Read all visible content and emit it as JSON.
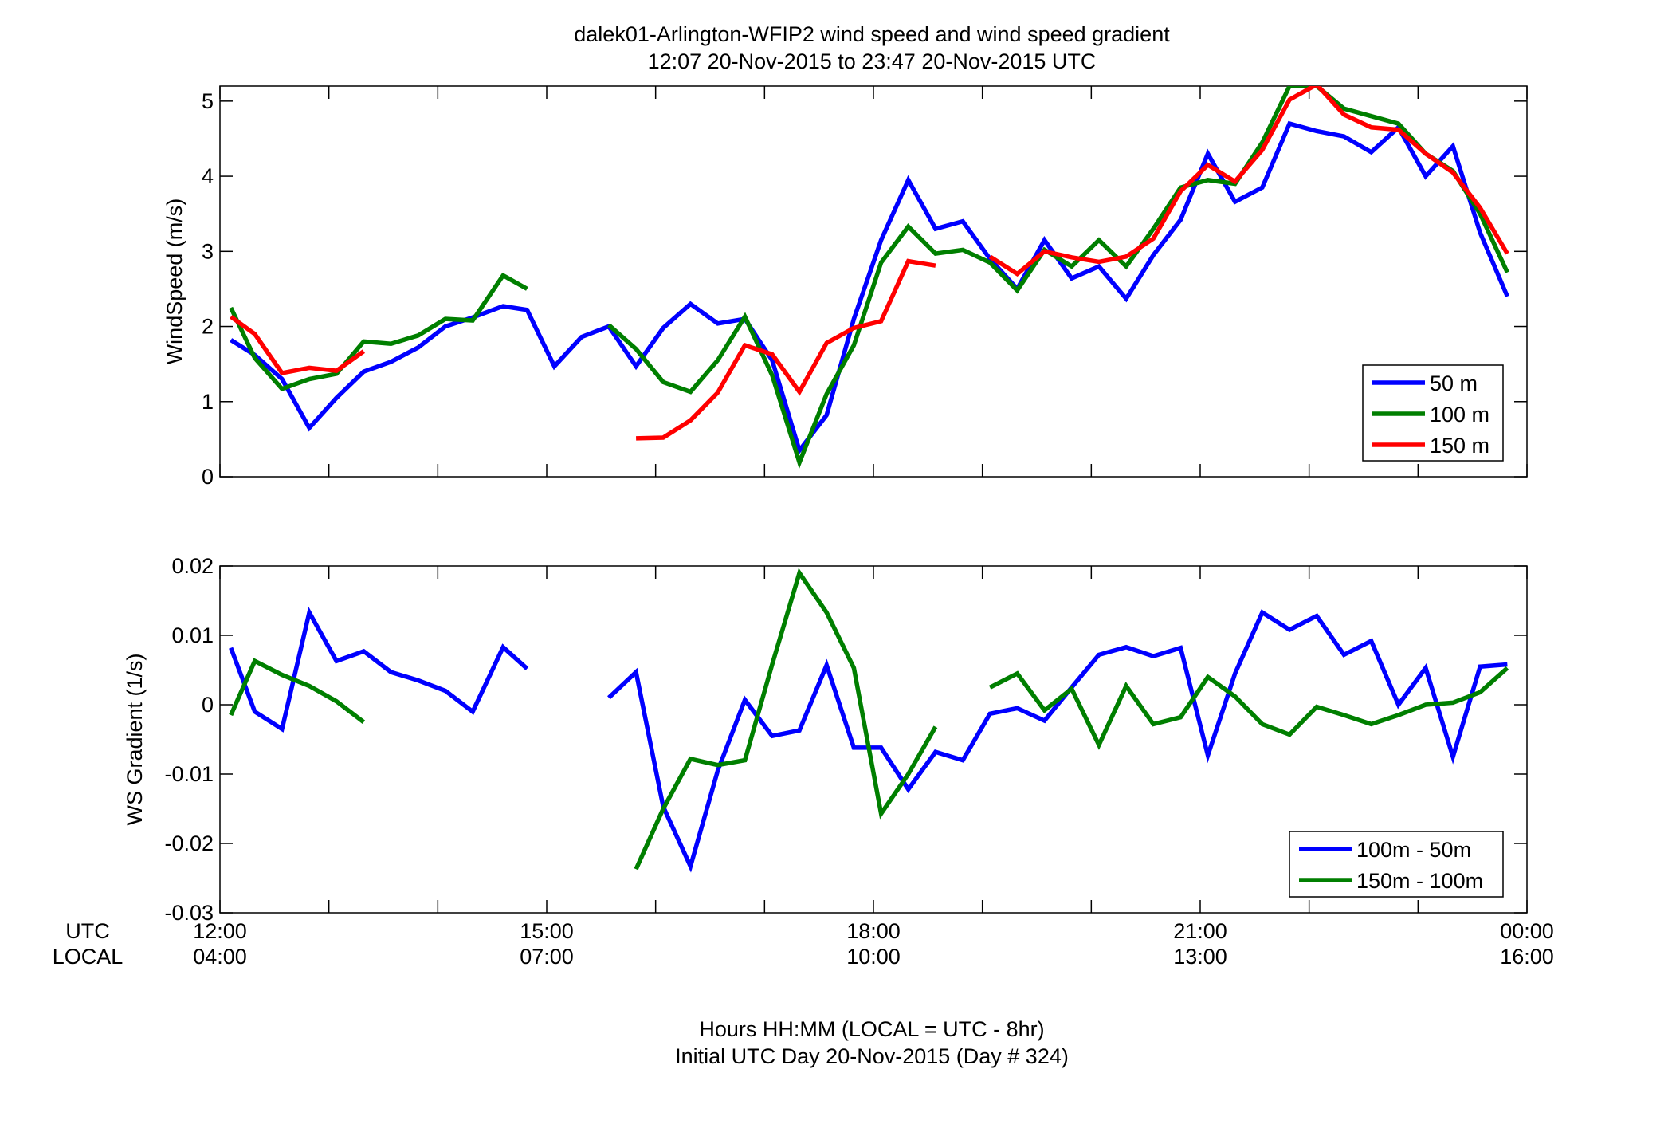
{
  "title": {
    "line1": "dalek01-Arlington-WFIP2  wind speed and wind speed gradient",
    "line2": "12:07 20-Nov-2015 to 23:47 20-Nov-2015  UTC"
  },
  "x_axis": {
    "utc_label": "UTC",
    "local_label": "LOCAL",
    "range_hours": [
      12,
      24
    ],
    "ticks_utc": [
      {
        "hour": 12,
        "label": "12:00"
      },
      {
        "hour": 15,
        "label": "15:00"
      },
      {
        "hour": 18,
        "label": "18:00"
      },
      {
        "hour": 21,
        "label": "21:00"
      },
      {
        "hour": 24,
        "label": "00:00"
      }
    ],
    "ticks_local": [
      {
        "hour": 12,
        "label": "04:00"
      },
      {
        "hour": 15,
        "label": "07:00"
      },
      {
        "hour": 18,
        "label": "10:00"
      },
      {
        "hour": 21,
        "label": "13:00"
      },
      {
        "hour": 24,
        "label": "16:00"
      }
    ],
    "minor_tick_hours": [
      13,
      14,
      16,
      17,
      19,
      20,
      22,
      23
    ],
    "caption_line1": "Hours HH:MM  (LOCAL = UTC - 8hr)",
    "caption_line2": "Initial UTC Day 20-Nov-2015 (Day # 324)"
  },
  "colors": {
    "blue": "#0000ff",
    "green": "#007f00",
    "red": "#ff0000"
  },
  "chart_data": [
    {
      "type": "line",
      "ylabel": "WindSpeed (m/s)",
      "ylim": [
        0,
        5.2
      ],
      "yticks": [
        0,
        1,
        2,
        3,
        4,
        5
      ],
      "ytick_labels": [
        "0",
        "1",
        "2",
        "3",
        "4",
        "5"
      ],
      "legend_position": "bottom-right",
      "series": [
        {
          "name": "50 m",
          "color": "#0000ff",
          "points": [
            [
              12.1,
              1.82
            ],
            [
              12.32,
              1.62
            ],
            [
              12.57,
              1.3
            ],
            [
              12.82,
              0.65
            ],
            [
              13.07,
              1.05
            ],
            [
              13.32,
              1.4
            ],
            [
              13.57,
              1.53
            ],
            [
              13.82,
              1.72
            ],
            [
              14.07,
              2.0
            ],
            [
              14.32,
              2.12
            ],
            [
              14.6,
              2.27
            ],
            [
              14.82,
              2.22
            ],
            [
              15.07,
              1.47
            ],
            [
              15.32,
              1.86
            ],
            [
              15.57,
              2.0
            ],
            [
              15.82,
              1.47
            ],
            [
              16.07,
              1.98
            ],
            [
              16.32,
              2.3
            ],
            [
              16.57,
              2.04
            ],
            [
              16.82,
              2.1
            ],
            [
              17.07,
              1.55
            ],
            [
              17.32,
              0.35
            ],
            [
              17.57,
              0.82
            ],
            [
              17.82,
              2.1
            ],
            [
              18.07,
              3.15
            ],
            [
              18.32,
              3.95
            ],
            [
              18.57,
              3.3
            ],
            [
              18.82,
              3.4
            ],
            [
              19.07,
              2.9
            ],
            [
              19.32,
              2.5
            ],
            [
              19.57,
              3.15
            ],
            [
              19.82,
              2.64
            ],
            [
              20.07,
              2.8
            ],
            [
              20.32,
              2.37
            ],
            [
              20.57,
              2.95
            ],
            [
              20.82,
              3.42
            ],
            [
              21.07,
              4.3
            ],
            [
              21.32,
              3.66
            ],
            [
              21.57,
              3.85
            ],
            [
              21.82,
              4.7
            ],
            [
              22.07,
              4.6
            ],
            [
              22.32,
              4.53
            ],
            [
              22.57,
              4.32
            ],
            [
              22.82,
              4.65
            ],
            [
              23.07,
              4.0
            ],
            [
              23.32,
              4.4
            ],
            [
              23.57,
              3.25
            ],
            [
              23.82,
              2.4
            ]
          ]
        },
        {
          "name": "100 m",
          "color": "#007f00",
          "points": [
            [
              12.1,
              2.25
            ],
            [
              12.32,
              1.58
            ],
            [
              12.57,
              1.17
            ],
            [
              12.82,
              1.3
            ],
            [
              13.07,
              1.37
            ],
            [
              13.32,
              1.8
            ],
            [
              13.57,
              1.77
            ],
            [
              13.82,
              1.88
            ],
            [
              14.07,
              2.1
            ],
            [
              14.32,
              2.08
            ],
            [
              14.6,
              2.68
            ],
            [
              14.82,
              2.5
            ],
            null,
            [
              15.57,
              2.02
            ],
            [
              15.82,
              1.7
            ],
            [
              16.07,
              1.26
            ],
            [
              16.32,
              1.13
            ],
            [
              16.57,
              1.55
            ],
            [
              16.82,
              2.13
            ],
            [
              17.07,
              1.35
            ],
            [
              17.32,
              0.19
            ],
            [
              17.57,
              1.1
            ],
            [
              17.82,
              1.75
            ],
            [
              18.07,
              2.85
            ],
            [
              18.32,
              3.33
            ],
            [
              18.57,
              2.97
            ],
            [
              18.82,
              3.02
            ],
            [
              19.07,
              2.85
            ],
            [
              19.32,
              2.48
            ],
            [
              19.57,
              3.02
            ],
            [
              19.82,
              2.8
            ],
            [
              20.07,
              3.15
            ],
            [
              20.32,
              2.8
            ],
            [
              20.57,
              3.3
            ],
            [
              20.82,
              3.85
            ],
            [
              21.07,
              3.95
            ],
            [
              21.32,
              3.9
            ],
            [
              21.57,
              4.45
            ],
            [
              21.82,
              5.2
            ],
            [
              22.07,
              5.2
            ],
            [
              22.32,
              4.9
            ],
            [
              22.57,
              4.8
            ],
            [
              22.82,
              4.7
            ],
            [
              23.07,
              4.3
            ],
            [
              23.32,
              4.07
            ],
            [
              23.57,
              3.5
            ],
            [
              23.82,
              2.72
            ]
          ]
        },
        {
          "name": "150 m",
          "color": "#ff0000",
          "points": [
            [
              12.1,
              2.13
            ],
            [
              12.32,
              1.9
            ],
            [
              12.57,
              1.38
            ],
            [
              12.82,
              1.45
            ],
            [
              13.07,
              1.41
            ],
            [
              13.32,
              1.67
            ],
            null,
            [
              15.82,
              0.51
            ],
            [
              16.07,
              0.52
            ],
            [
              16.32,
              0.75
            ],
            [
              16.57,
              1.12
            ],
            [
              16.82,
              1.75
            ],
            [
              17.07,
              1.63
            ],
            [
              17.32,
              1.13
            ],
            [
              17.57,
              1.78
            ],
            [
              17.82,
              1.98
            ],
            [
              18.07,
              2.07
            ],
            [
              18.32,
              2.87
            ],
            [
              18.57,
              2.81
            ],
            null,
            [
              19.07,
              2.93
            ],
            [
              19.32,
              2.7
            ],
            [
              19.57,
              3.0
            ],
            [
              19.82,
              2.92
            ],
            [
              20.07,
              2.86
            ],
            [
              20.32,
              2.93
            ],
            [
              20.57,
              3.17
            ],
            [
              20.82,
              3.8
            ],
            [
              21.07,
              4.15
            ],
            [
              21.32,
              3.93
            ],
            [
              21.57,
              4.35
            ],
            [
              21.82,
              5.02
            ],
            [
              22.07,
              5.22
            ],
            [
              22.32,
              4.82
            ],
            [
              22.57,
              4.65
            ],
            [
              22.82,
              4.62
            ],
            [
              23.07,
              4.3
            ],
            [
              23.32,
              4.05
            ],
            [
              23.57,
              3.58
            ],
            [
              23.82,
              2.97
            ]
          ]
        }
      ]
    },
    {
      "type": "line",
      "ylabel": "WS Gradient (1/s)",
      "ylim": [
        -0.03,
        0.02
      ],
      "yticks": [
        -0.03,
        -0.02,
        -0.01,
        0,
        0.01,
        0.02
      ],
      "ytick_labels": [
        "-0.03",
        "-0.02",
        "-0.01",
        "0",
        "0.01",
        "0.02"
      ],
      "legend_position": "bottom-right",
      "series": [
        {
          "name": "100m - 50m",
          "color": "#0000ff",
          "points": [
            [
              12.1,
              0.0082
            ],
            [
              12.32,
              -0.001
            ],
            [
              12.57,
              -0.0035
            ],
            [
              12.82,
              0.0133
            ],
            [
              13.07,
              0.0063
            ],
            [
              13.32,
              0.0077
            ],
            [
              13.57,
              0.0047
            ],
            [
              13.82,
              0.0035
            ],
            [
              14.07,
              0.002
            ],
            [
              14.32,
              -0.001
            ],
            [
              14.6,
              0.0083
            ],
            [
              14.82,
              0.0052
            ],
            null,
            [
              15.57,
              0.001
            ],
            [
              15.82,
              0.0047
            ],
            [
              16.07,
              -0.0147
            ],
            [
              16.32,
              -0.0233
            ],
            [
              16.57,
              -0.0095
            ],
            [
              16.82,
              0.0007
            ],
            [
              17.07,
              -0.0045
            ],
            [
              17.32,
              -0.0037
            ],
            [
              17.57,
              0.0057
            ],
            [
              17.82,
              -0.0062
            ],
            [
              18.07,
              -0.0062
            ],
            [
              18.32,
              -0.0122
            ],
            [
              18.57,
              -0.0068
            ],
            [
              18.82,
              -0.008
            ],
            [
              19.07,
              -0.0013
            ],
            [
              19.32,
              -0.0005
            ],
            [
              19.57,
              -0.0023
            ],
            [
              19.82,
              0.0025
            ],
            [
              20.07,
              0.0072
            ],
            [
              20.32,
              0.0083
            ],
            [
              20.57,
              0.007
            ],
            [
              20.82,
              0.0082
            ],
            [
              21.07,
              -0.0073
            ],
            [
              21.32,
              0.0045
            ],
            [
              21.57,
              0.0133
            ],
            [
              21.82,
              0.0108
            ],
            [
              22.07,
              0.0128
            ],
            [
              22.32,
              0.0072
            ],
            [
              22.57,
              0.0092
            ],
            [
              22.82,
              0.0
            ],
            [
              23.07,
              0.0053
            ],
            [
              23.32,
              -0.0075
            ],
            [
              23.57,
              0.0055
            ],
            [
              23.82,
              0.0058
            ]
          ]
        },
        {
          "name": "150m - 100m",
          "color": "#007f00",
          "points": [
            [
              12.1,
              -0.0015
            ],
            [
              12.32,
              0.0063
            ],
            [
              12.57,
              0.0043
            ],
            [
              12.82,
              0.0027
            ],
            [
              13.07,
              0.0005
            ],
            [
              13.32,
              -0.0025
            ],
            null,
            [
              15.82,
              -0.0237
            ],
            [
              16.07,
              -0.015
            ],
            [
              16.32,
              -0.0078
            ],
            [
              16.57,
              -0.0087
            ],
            [
              16.82,
              -0.008
            ],
            [
              17.07,
              0.0058
            ],
            [
              17.32,
              0.019
            ],
            [
              17.57,
              0.0133
            ],
            [
              17.82,
              0.0053
            ],
            [
              18.07,
              -0.0157
            ],
            [
              18.32,
              -0.01
            ],
            [
              18.57,
              -0.0032
            ],
            null,
            [
              19.07,
              0.0025
            ],
            [
              19.32,
              0.0045
            ],
            [
              19.57,
              -0.0008
            ],
            [
              19.82,
              0.0023
            ],
            [
              20.07,
              -0.0058
            ],
            [
              20.32,
              0.0027
            ],
            [
              20.57,
              -0.0028
            ],
            [
              20.82,
              -0.0018
            ],
            [
              21.07,
              0.004
            ],
            [
              21.32,
              0.0012
            ],
            [
              21.57,
              -0.0028
            ],
            [
              21.82,
              -0.0043
            ],
            [
              22.07,
              -0.0003
            ],
            [
              22.32,
              -0.0015
            ],
            [
              22.57,
              -0.0028
            ],
            [
              22.82,
              -0.0015
            ],
            [
              23.07,
              0.0
            ],
            [
              23.32,
              0.0003
            ],
            [
              23.57,
              0.0018
            ],
            [
              23.82,
              0.0053
            ]
          ]
        }
      ]
    }
  ]
}
